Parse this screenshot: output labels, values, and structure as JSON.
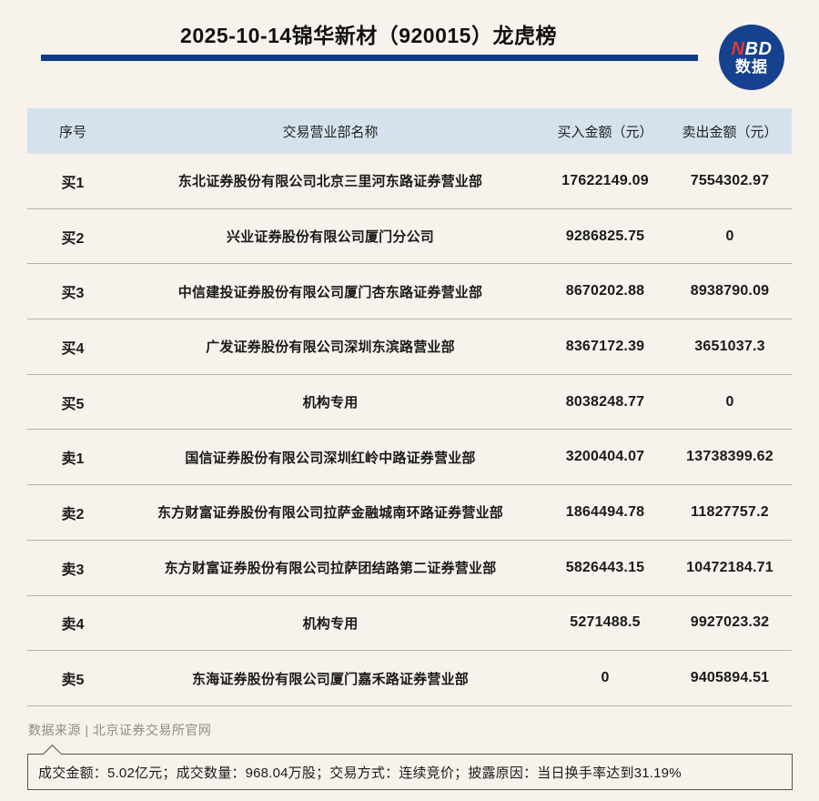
{
  "header": {
    "title": "2025-10-14锦华新材（920015）龙虎榜",
    "logo": {
      "n": "N",
      "bd": "BD",
      "line2": "数据"
    }
  },
  "colors": {
    "page_bg": "#f7f3ec",
    "title_bar_blue": "#0e3c8d",
    "logo_blue": "#16418e",
    "logo_red": "#e5392c",
    "table_header_bg": "#d5e2ee",
    "divider": "#b7b3aa",
    "muted_text": "#8f8c84"
  },
  "chart_data": {
    "type": "table",
    "title": "2025-10-14锦华新材（920015）龙虎榜",
    "columns": [
      "序号",
      "交易营业部名称",
      "买入金额（元）",
      "卖出金额（元）"
    ],
    "rows": [
      [
        "买1",
        "东北证券股份有限公司北京三里河东路证券营业部",
        "17622149.09",
        "7554302.97"
      ],
      [
        "买2",
        "兴业证券股份有限公司厦门分公司",
        "9286825.75",
        "0"
      ],
      [
        "买3",
        "中信建投证券股份有限公司厦门杏东路证券营业部",
        "8670202.88",
        "8938790.09"
      ],
      [
        "买4",
        "广发证券股份有限公司深圳东滨路营业部",
        "8367172.39",
        "3651037.3"
      ],
      [
        "买5",
        "机构专用",
        "8038248.77",
        "0"
      ],
      [
        "卖1",
        "国信证券股份有限公司深圳红岭中路证券营业部",
        "3200404.07",
        "13738399.62"
      ],
      [
        "卖2",
        "东方财富证券股份有限公司拉萨金融城南环路证券营业部",
        "1864494.78",
        "11827757.2"
      ],
      [
        "卖3",
        "东方财富证券股份有限公司拉萨团结路第二证券营业部",
        "5826443.15",
        "10472184.71"
      ],
      [
        "卖4",
        "机构专用",
        "5271488.5",
        "9927023.32"
      ],
      [
        "卖5",
        "东海证券股份有限公司厦门嘉禾路证券营业部",
        "0",
        "9405894.51"
      ]
    ]
  },
  "footer": {
    "source": "数据来源 | 北京证券交易所官网",
    "note": "成交金额：5.02亿元；成交数量：968.04万股；交易方式：连续竞价；披露原因：当日换手率达到31.19%"
  }
}
